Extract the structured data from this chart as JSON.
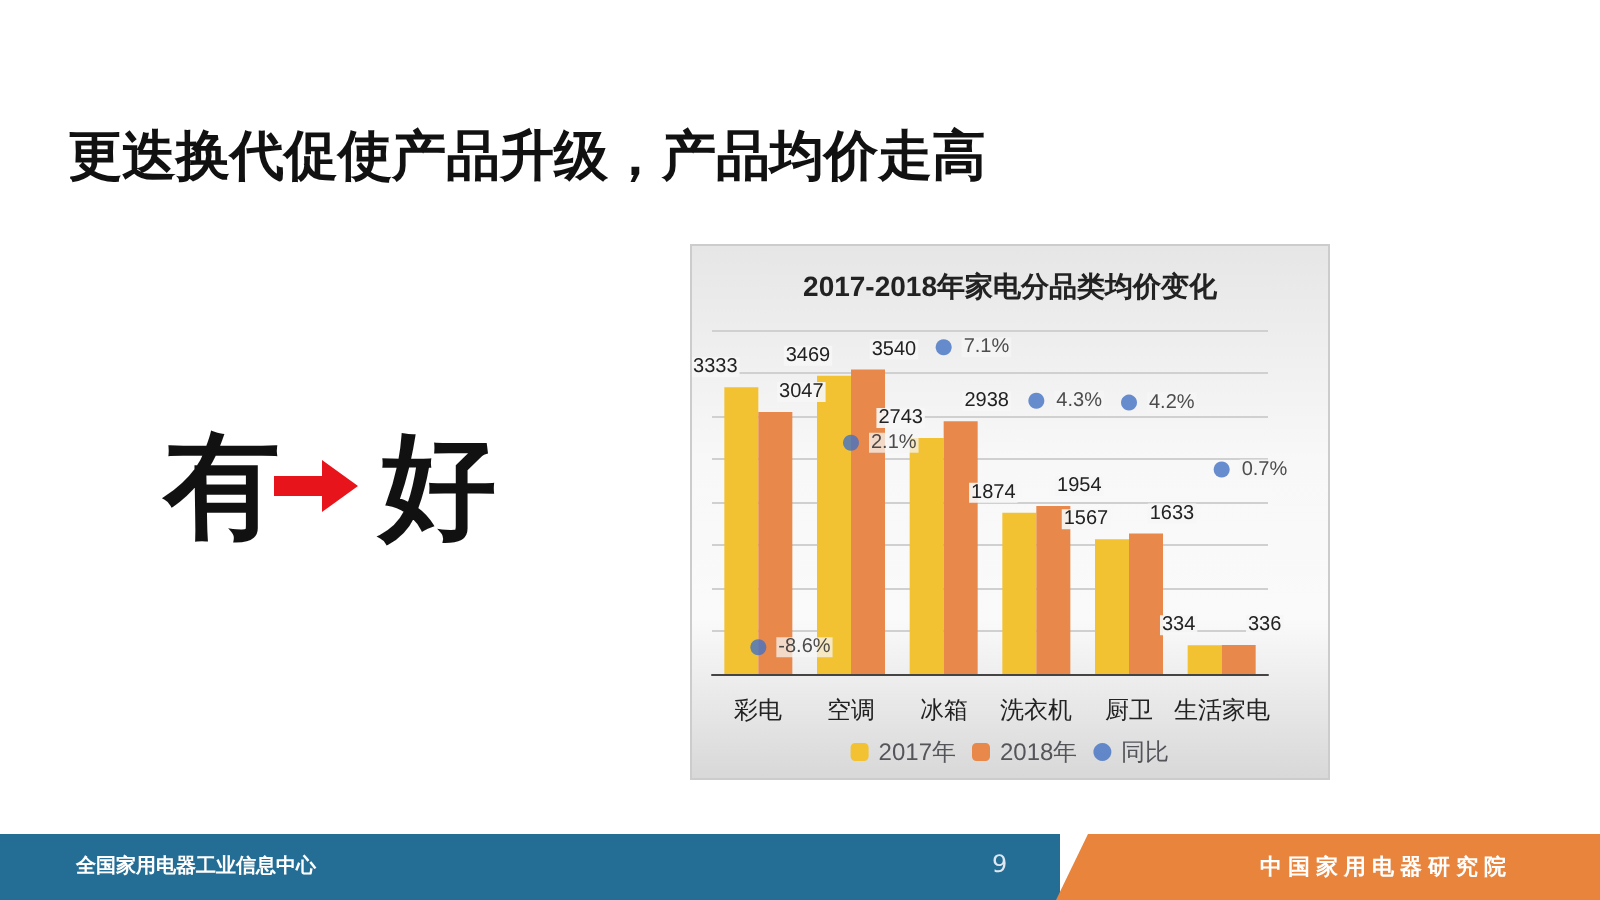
{
  "chart_data": {
    "type": "bar",
    "title": "2017-2018年家电分品类均价变化",
    "categories": [
      "彩电",
      "空调",
      "冰箱",
      "洗衣机",
      "厨卫",
      "生活家电"
    ],
    "series": [
      {
        "name": "2017年",
        "color": "#f2c232",
        "values": [
          3333,
          3469,
          2743,
          1874,
          1567,
          334
        ],
        "value_labels": [
          "3333",
          "3469",
          "2743",
          "1874",
          "1567",
          "334"
        ]
      },
      {
        "name": "2018年",
        "color": "#e8884a",
        "values": [
          3047,
          3540,
          2938,
          1954,
          1633,
          336
        ],
        "value_labels": [
          "3047",
          "3540",
          "2938",
          "1954",
          "1633",
          "336"
        ]
      },
      {
        "name": "同比",
        "type": "scatter",
        "axis": "y2",
        "color": "#4472c4",
        "marker": "circle",
        "values": [
          -8.6,
          2.1,
          7.1,
          4.3,
          4.2,
          0.7
        ],
        "value_labels": [
          "-8.6%",
          "2.1%",
          "7.1%",
          "4.3%",
          "4.2%",
          "0.7%"
        ]
      }
    ],
    "ylim": [
      0,
      4000
    ],
    "yticks": [
      {
        "value": 0,
        "label": null
      },
      {
        "value": 500,
        "label": null
      },
      {
        "value": 1000,
        "label": null
      },
      {
        "value": 1500,
        "label": null
      },
      {
        "value": 2000,
        "label": null
      },
      {
        "value": 2500,
        "label": null
      },
      {
        "value": 3000,
        "label": null
      },
      {
        "value": 3500,
        "label": null
      },
      {
        "value": 4000,
        "label": null
      }
    ],
    "y2lim": [
      -10,
      8
    ],
    "tick_labels": "x",
    "grid": "y",
    "legend": "bottom",
    "annotations": [
      "更迭换代促使产品升级，产品均价走高",
      "有",
      "好",
      "全国家用电器工业信息中心",
      "9",
      "中国家用电器研究院"
    ]
  }
}
